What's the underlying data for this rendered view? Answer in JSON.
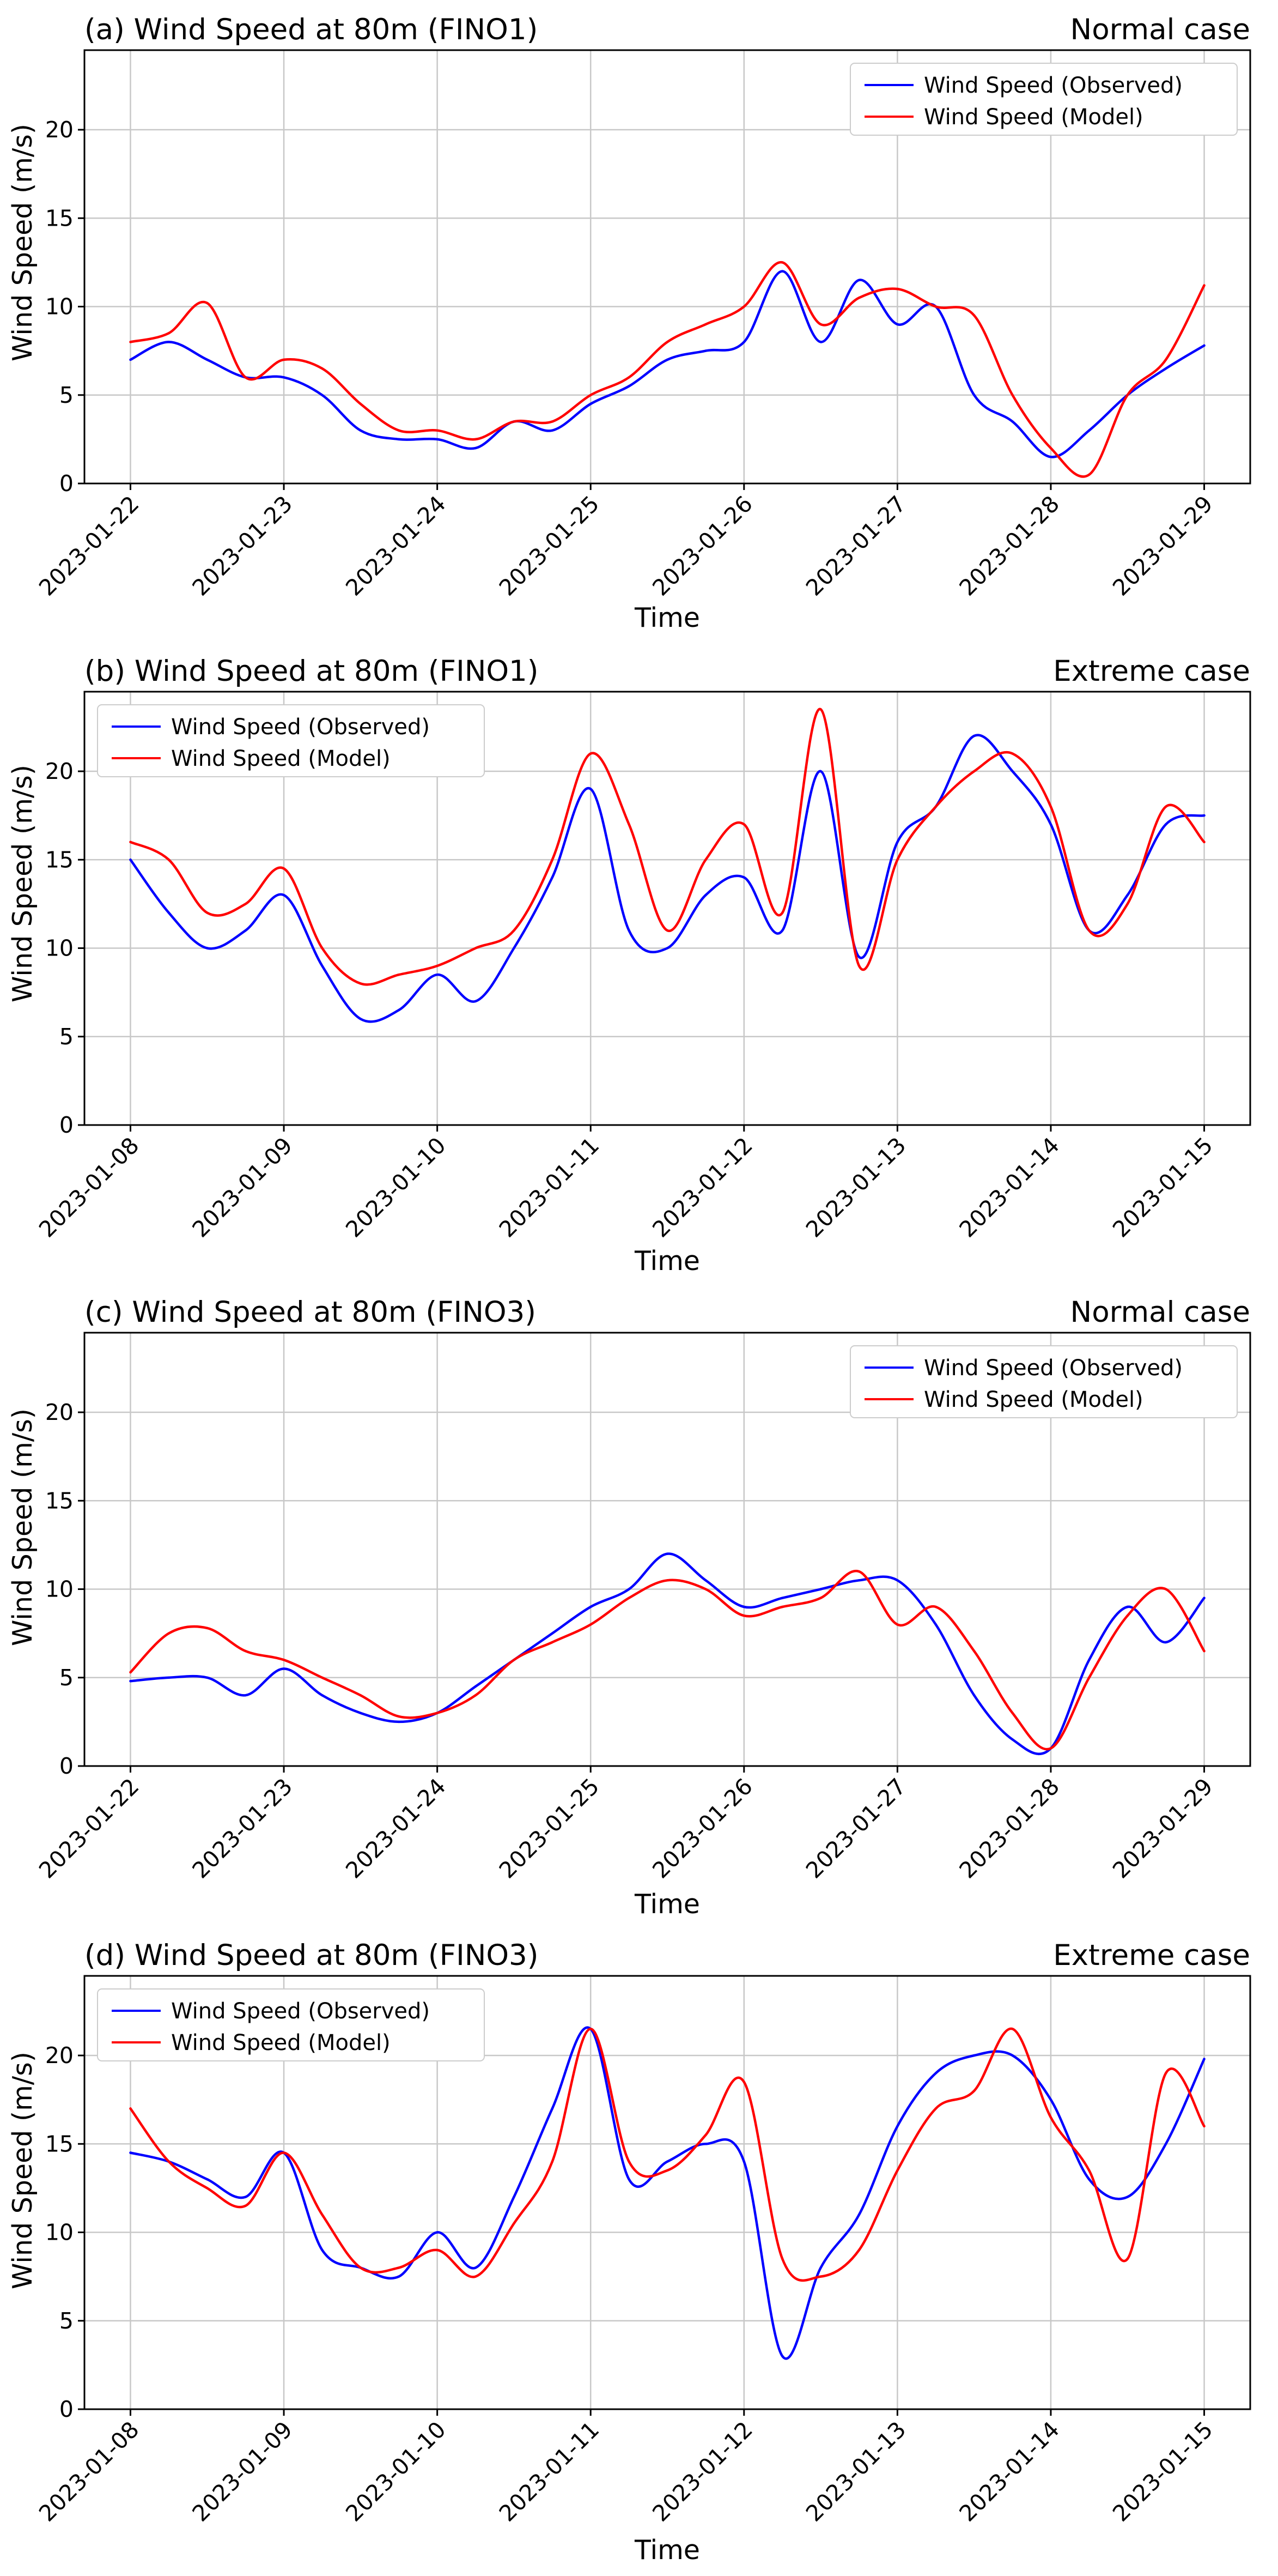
{
  "figure": {
    "xlabel": "Time",
    "ylabel": "Wind Speed (m/s)"
  },
  "colors": {
    "observed": "#0000ff",
    "model": "#ff0000",
    "grid": "#c8c8c8",
    "frame": "#000000"
  },
  "chart_data": [
    {
      "type": "line",
      "title": "(a) Wind Speed at 80m (FINO1)",
      "case_label": "Normal case",
      "xlabel": "Time",
      "ylabel": "Wind Speed (m/s)",
      "ylim": [
        0,
        24.5
      ],
      "yticks": [
        0,
        5,
        10,
        15,
        20
      ],
      "xlim": [
        -0.3,
        7.3
      ],
      "x_unit": "days since first date label",
      "categories": [
        "2023-01-22",
        "2023-01-23",
        "2023-01-24",
        "2023-01-25",
        "2023-01-26",
        "2023-01-27",
        "2023-01-28",
        "2023-01-29"
      ],
      "legend_position": "upper right",
      "x": [
        0.0,
        0.25,
        0.5,
        0.75,
        1.0,
        1.25,
        1.5,
        1.75,
        2.0,
        2.25,
        2.5,
        2.75,
        3.0,
        3.25,
        3.5,
        3.75,
        4.0,
        4.25,
        4.5,
        4.75,
        5.0,
        5.25,
        5.5,
        5.75,
        6.0,
        6.25,
        6.5,
        6.75,
        7.0
      ],
      "series": [
        {
          "name": "Wind Speed (Observed)",
          "values": [
            7.0,
            8.0,
            7.0,
            6.0,
            6.0,
            5.0,
            3.0,
            2.5,
            2.5,
            2.0,
            3.5,
            3.0,
            4.5,
            5.5,
            7.0,
            7.5,
            8.0,
            12.0,
            8.0,
            11.5,
            9.0,
            10.0,
            5.0,
            3.5,
            1.5,
            3.0,
            5.0,
            6.5,
            7.8
          ]
        },
        {
          "name": "Wind Speed (Model)",
          "values": [
            8.0,
            8.5,
            10.2,
            6.0,
            7.0,
            6.5,
            4.5,
            3.0,
            3.0,
            2.5,
            3.5,
            3.5,
            5.0,
            6.0,
            8.0,
            9.0,
            10.0,
            12.5,
            9.0,
            10.5,
            11.0,
            10.0,
            9.5,
            5.0,
            2.0,
            0.5,
            5.0,
            7.0,
            11.2
          ]
        }
      ]
    },
    {
      "type": "line",
      "title": "(b) Wind Speed at 80m (FINO1)",
      "case_label": "Extreme case",
      "xlabel": "Time",
      "ylabel": "Wind Speed (m/s)",
      "ylim": [
        0,
        24.5
      ],
      "yticks": [
        0,
        5,
        10,
        15,
        20
      ],
      "xlim": [
        -0.3,
        7.3
      ],
      "x_unit": "days since first date label",
      "categories": [
        "2023-01-08",
        "2023-01-09",
        "2023-01-10",
        "2023-01-11",
        "2023-01-12",
        "2023-01-13",
        "2023-01-14",
        "2023-01-15"
      ],
      "legend_position": "upper left",
      "x": [
        0.0,
        0.25,
        0.5,
        0.75,
        1.0,
        1.25,
        1.5,
        1.75,
        2.0,
        2.25,
        2.5,
        2.75,
        3.0,
        3.25,
        3.5,
        3.75,
        4.0,
        4.25,
        4.5,
        4.75,
        5.0,
        5.25,
        5.5,
        5.75,
        6.0,
        6.25,
        6.5,
        6.75,
        7.0
      ],
      "series": [
        {
          "name": "Wind Speed (Observed)",
          "values": [
            15.0,
            12.0,
            10.0,
            11.0,
            13.0,
            9.0,
            6.0,
            6.5,
            8.5,
            7.0,
            10.0,
            14.0,
            19.0,
            11.0,
            10.0,
            13.0,
            14.0,
            11.0,
            20.0,
            9.5,
            16.0,
            18.0,
            22.0,
            20.0,
            17.0,
            11.0,
            13.0,
            17.0,
            17.5
          ]
        },
        {
          "name": "Wind Speed (Model)",
          "values": [
            16.0,
            15.0,
            12.0,
            12.5,
            14.5,
            10.0,
            8.0,
            8.5,
            9.0,
            10.0,
            11.0,
            15.0,
            21.0,
            17.0,
            11.0,
            15.0,
            17.0,
            12.0,
            23.5,
            9.0,
            15.0,
            18.0,
            20.0,
            21.0,
            18.0,
            11.0,
            12.5,
            18.0,
            16.0
          ]
        }
      ]
    },
    {
      "type": "line",
      "title": "(c) Wind Speed at 80m (FINO3)",
      "case_label": "Normal case",
      "xlabel": "Time",
      "ylabel": "Wind Speed (m/s)",
      "ylim": [
        0,
        24.5
      ],
      "yticks": [
        0,
        5,
        10,
        15,
        20
      ],
      "xlim": [
        -0.3,
        7.3
      ],
      "x_unit": "days since first date label",
      "categories": [
        "2023-01-22",
        "2023-01-23",
        "2023-01-24",
        "2023-01-25",
        "2023-01-26",
        "2023-01-27",
        "2023-01-28",
        "2023-01-29"
      ],
      "legend_position": "upper right",
      "x": [
        0.0,
        0.25,
        0.5,
        0.75,
        1.0,
        1.25,
        1.5,
        1.75,
        2.0,
        2.25,
        2.5,
        2.75,
        3.0,
        3.25,
        3.5,
        3.75,
        4.0,
        4.25,
        4.5,
        4.75,
        5.0,
        5.25,
        5.5,
        5.75,
        6.0,
        6.25,
        6.5,
        6.75,
        7.0
      ],
      "series": [
        {
          "name": "Wind Speed (Observed)",
          "values": [
            4.8,
            5.0,
            5.0,
            4.0,
            5.5,
            4.0,
            3.0,
            2.5,
            3.0,
            4.5,
            6.0,
            7.5,
            9.0,
            10.0,
            12.0,
            10.5,
            9.0,
            9.5,
            10.0,
            10.5,
            10.5,
            8.0,
            4.0,
            1.5,
            1.0,
            6.0,
            9.0,
            7.0,
            9.5
          ]
        },
        {
          "name": "Wind Speed (Model)",
          "values": [
            5.3,
            7.5,
            7.8,
            6.5,
            6.0,
            5.0,
            4.0,
            2.8,
            3.0,
            4.0,
            6.0,
            7.0,
            8.0,
            9.5,
            10.5,
            10.0,
            8.5,
            9.0,
            9.5,
            11.0,
            8.0,
            9.0,
            6.5,
            3.0,
            1.0,
            5.0,
            8.5,
            10.0,
            6.5
          ]
        }
      ]
    },
    {
      "type": "line",
      "title": "(d) Wind Speed at 80m (FINO3)",
      "case_label": "Extreme case",
      "xlabel": "Time",
      "ylabel": "Wind Speed (m/s)",
      "ylim": [
        0,
        24.5
      ],
      "yticks": [
        0,
        5,
        10,
        15,
        20
      ],
      "xlim": [
        -0.3,
        7.3
      ],
      "x_unit": "days since first date label",
      "categories": [
        "2023-01-08",
        "2023-01-09",
        "2023-01-10",
        "2023-01-11",
        "2023-01-12",
        "2023-01-13",
        "2023-01-14",
        "2023-01-15"
      ],
      "legend_position": "upper left",
      "x": [
        0.0,
        0.25,
        0.5,
        0.75,
        1.0,
        1.25,
        1.5,
        1.75,
        2.0,
        2.25,
        2.5,
        2.75,
        3.0,
        3.25,
        3.5,
        3.75,
        4.0,
        4.25,
        4.5,
        4.75,
        5.0,
        5.25,
        5.5,
        5.75,
        6.0,
        6.25,
        6.5,
        6.75,
        7.0
      ],
      "series": [
        {
          "name": "Wind Speed (Observed)",
          "values": [
            14.5,
            14.0,
            13.0,
            12.0,
            14.5,
            9.0,
            8.0,
            7.5,
            10.0,
            8.0,
            12.0,
            17.0,
            21.5,
            13.0,
            14.0,
            15.0,
            14.0,
            3.0,
            8.0,
            11.0,
            16.0,
            19.0,
            20.0,
            20.0,
            17.5,
            13.0,
            12.0,
            15.0,
            19.8
          ]
        },
        {
          "name": "Wind Speed (Model)",
          "values": [
            17.0,
            14.0,
            12.5,
            11.5,
            14.5,
            11.0,
            8.0,
            8.0,
            9.0,
            7.5,
            10.5,
            14.0,
            21.5,
            14.0,
            13.5,
            15.5,
            18.5,
            8.5,
            7.5,
            9.0,
            13.5,
            17.0,
            18.0,
            21.5,
            16.5,
            13.5,
            8.5,
            19.0,
            16.0
          ]
        }
      ]
    }
  ]
}
